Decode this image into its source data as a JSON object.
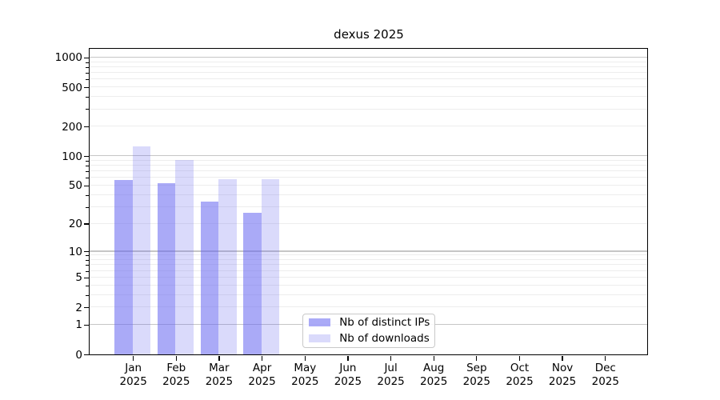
{
  "chart_data": {
    "type": "bar",
    "title": "dexus 2025",
    "months": [
      "Jan",
      "Feb",
      "Mar",
      "Apr",
      "May",
      "Jun",
      "Jul",
      "Aug",
      "Sep",
      "Oct",
      "Nov",
      "Dec"
    ],
    "year": "2025",
    "series": [
      {
        "name": "Nb of distinct IPs",
        "color": "rgba(100,100,240,0.55)",
        "values": [
          56,
          52,
          34,
          26,
          null,
          null,
          null,
          null,
          null,
          null,
          null,
          null
        ]
      },
      {
        "name": "Nb of downloads",
        "color": "rgba(100,100,240,0.24)",
        "values": [
          124,
          91,
          58,
          58,
          null,
          null,
          null,
          null,
          null,
          null,
          null,
          null
        ]
      }
    ],
    "yscale": "log1p",
    "ylim": [
      0,
      1000
    ],
    "y_ticks": [
      0,
      1,
      2,
      5,
      10,
      20,
      50,
      100,
      200,
      500,
      1000
    ],
    "y_minor_ticks": [
      3,
      4,
      6,
      7,
      8,
      9,
      30,
      40,
      60,
      70,
      80,
      90,
      300,
      400,
      600,
      700,
      800,
      900
    ],
    "gridlines": {
      "major": [
        1,
        10,
        100,
        1000
      ],
      "minor": [
        2,
        3,
        4,
        5,
        6,
        7,
        8,
        9,
        20,
        30,
        40,
        50,
        60,
        70,
        80,
        90,
        200,
        300,
        400,
        500,
        600,
        700,
        800,
        900
      ]
    },
    "legend_position": "inside-bottom-center",
    "colors": {
      "grid_major": "#c6c6c6",
      "grid_minor": "#ededed",
      "spine": "#000000",
      "text": "#000000",
      "background": "#ffffff"
    }
  }
}
